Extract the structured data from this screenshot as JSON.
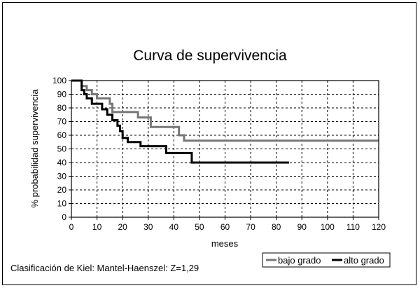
{
  "chart_data": {
    "type": "line",
    "step": true,
    "title": "Curva de supervivencia",
    "xlabel": "meses",
    "ylabel": "% probabilidad supervivencia",
    "xlim": [
      0,
      120
    ],
    "ylim": [
      0,
      100
    ],
    "xticks": [
      0,
      10,
      20,
      30,
      40,
      50,
      60,
      70,
      80,
      90,
      100,
      110,
      120
    ],
    "yticks": [
      0,
      10,
      20,
      30,
      40,
      50,
      60,
      70,
      80,
      90,
      100
    ],
    "grid": true,
    "legend_position": "bottom-right",
    "series": [
      {
        "name": "bajo grado",
        "color": "#777777",
        "x": [
          0,
          4,
          6,
          8,
          10,
          12,
          15,
          16,
          26,
          31,
          42,
          44,
          120
        ],
        "y": [
          100,
          96,
          93,
          90,
          87,
          87,
          83,
          77,
          73,
          66,
          60,
          56,
          56
        ]
      },
      {
        "name": "alto grado",
        "color": "#000000",
        "x": [
          0,
          4,
          5,
          6,
          8,
          12,
          14,
          16,
          18,
          19,
          20,
          22,
          27,
          37,
          47,
          85
        ],
        "y": [
          100,
          93,
          90,
          87,
          83,
          79,
          75,
          71,
          67,
          63,
          58,
          55,
          52,
          47,
          40,
          40
        ]
      }
    ]
  },
  "footnote": "Clasificación de Kiel: Mantel-Haenszel: Z=1,29"
}
